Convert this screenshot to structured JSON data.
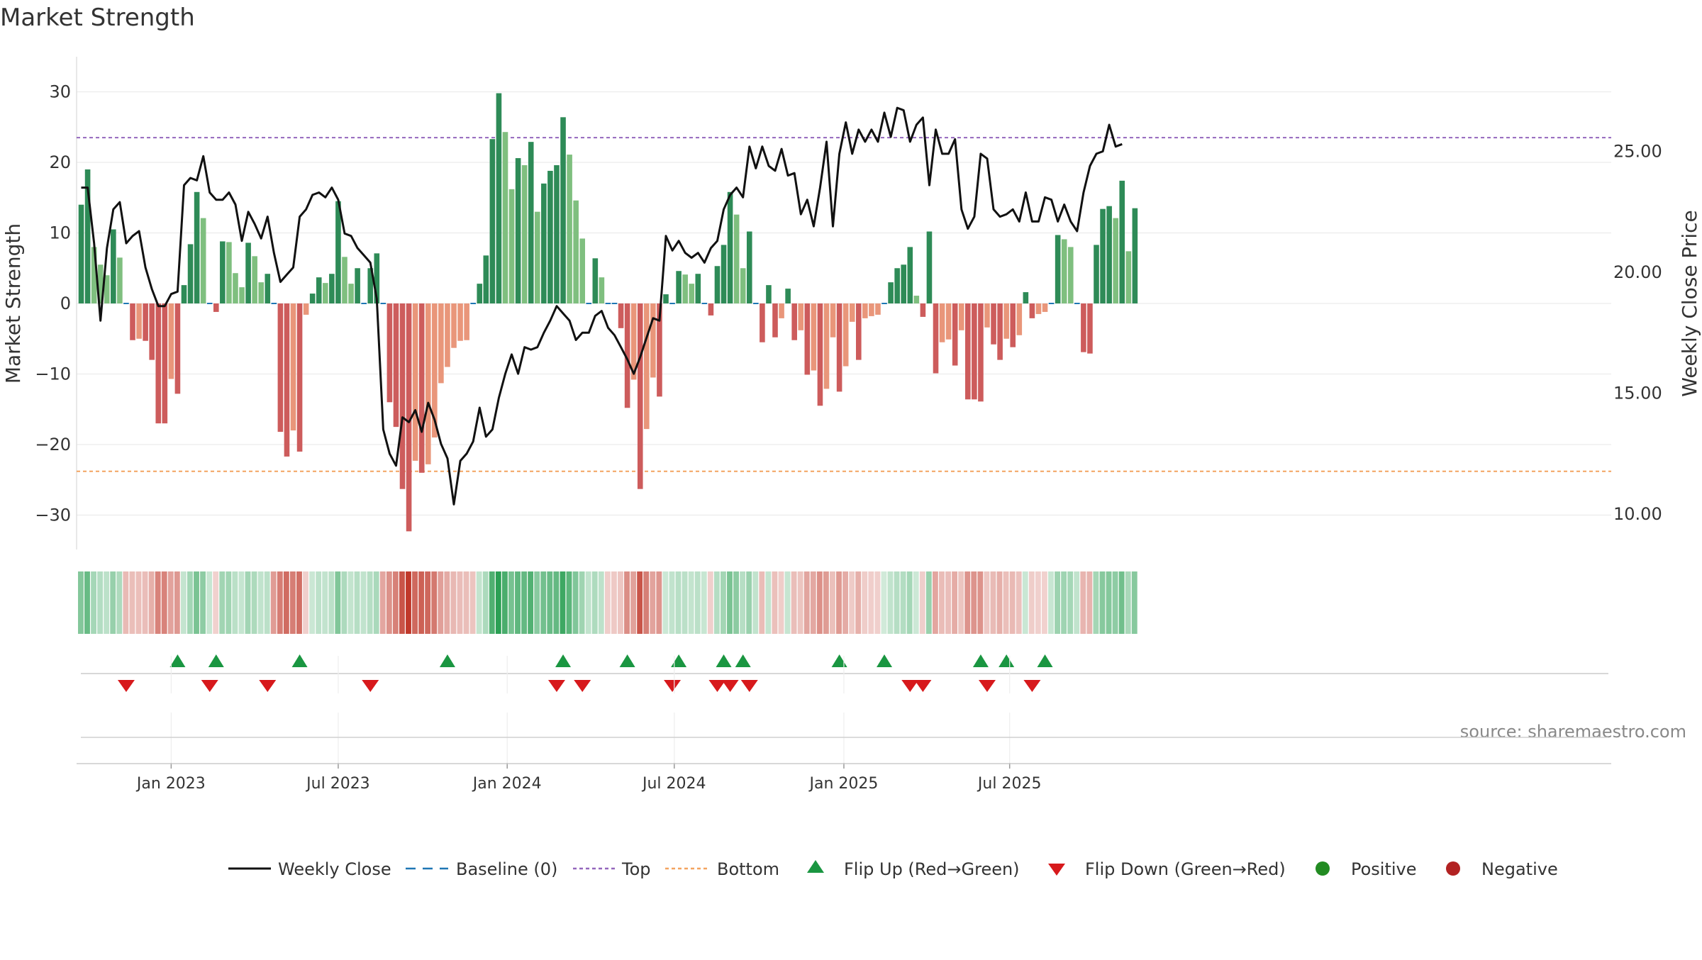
{
  "title": "Market Strength",
  "source": "source: sharemaestro.com",
  "colors": {
    "pos_strong": "#2e8b57",
    "pos_light": "#7fbf7f",
    "neg_strong": "#cd5c5c",
    "neg_light": "#e9967a",
    "line": "#111111",
    "baseline": "#1f77b4",
    "top": "#9467bd",
    "bottom": "#f4a460",
    "flip_up": "#1a9641",
    "flip_down": "#d7191c",
    "positive_dot": "#228b22",
    "negative_dot": "#b22222"
  },
  "chart_data": {
    "type": "bar",
    "title": "Market Strength",
    "ylabel_left": "Market Strength",
    "ylabel_right": "Weekly Close Price",
    "ylim_left": [
      -35,
      35
    ],
    "yticks_left": [
      "30",
      "20",
      "10",
      "0",
      "−10",
      "−20",
      "−30"
    ],
    "ytick_values_left": [
      30,
      20,
      10,
      0,
      -10,
      -20,
      -30
    ],
    "ylim_right": [
      8.1,
      28.1
    ],
    "yticks_right": [
      "25.00",
      "20.00",
      "15.00",
      "10.00"
    ],
    "ytick_values_right": [
      25,
      20,
      15,
      10
    ],
    "top_level": 23.5,
    "bottom_level": -23.8,
    "x_ticks": [
      {
        "label": "Jan 2023",
        "week": 14.5
      },
      {
        "label": "Jul 2023",
        "week": 40.5
      },
      {
        "label": "Jan 2024",
        "week": 66.8
      },
      {
        "label": "Jul 2024",
        "week": 92.8
      },
      {
        "label": "Jan 2025",
        "week": 119.2
      },
      {
        "label": "Jul 2025",
        "week": 145
      }
    ],
    "strength": [
      14,
      19,
      8,
      5.5,
      4,
      10.5,
      6.5,
      -0.3,
      -5.2,
      -5,
      -5.3,
      -8,
      -17,
      -17,
      -10.7,
      -12.8,
      2.6,
      8.4,
      15.8,
      12.1,
      0,
      -1.2,
      8.8,
      8.7,
      4.3,
      2.3,
      8.6,
      6.7,
      3,
      4.2,
      -0.3,
      -18.2,
      -21.7,
      -18,
      -21,
      -1.6,
      1.4,
      3.7,
      2.9,
      4.2,
      14.5,
      6.6,
      2.8,
      5,
      -0.3,
      5,
      7.1,
      -0.3,
      -14,
      -17.5,
      -26.3,
      -32.3,
      -22.3,
      -24,
      -22.8,
      -19,
      -11.3,
      -9,
      -6.3,
      -5.3,
      -5.2,
      -0.3,
      2.8,
      6.8,
      23.3,
      29.8,
      24.3,
      16.2,
      20.6,
      19.6,
      22.9,
      13,
      17,
      18.8,
      19.6,
      26.4,
      21.1,
      14.6,
      9.2,
      -0.3,
      6.4,
      3.7,
      -0.3,
      -0.3,
      -3.5,
      -14.8,
      -10.8,
      -26.3,
      -17.8,
      -10.5,
      -13.2,
      1.3,
      -0.3,
      4.6,
      4.1,
      2.8,
      4.2,
      -0.3,
      -1.7,
      5.3,
      8.3,
      15.8,
      12.6,
      5,
      10.2,
      -0.3,
      -5.5,
      2.6,
      -4.8,
      -2.1,
      2.1,
      -5.2,
      -3.8,
      -10.1,
      -9.5,
      -14.5,
      -12.1,
      -4.8,
      -12.5,
      -8.9,
      -2.6,
      -8,
      -2.1,
      -1.8,
      -1.6,
      0.3,
      3,
      5,
      5.5,
      8,
      1.1,
      -1.9,
      10.2,
      -9.9,
      -5.5,
      -5.1,
      -8.8,
      -3.8,
      -13.6,
      -13.6,
      -13.9,
      -3.4,
      -5.8,
      -8,
      -5,
      -6.2,
      -4.5,
      1.6,
      -2.1,
      -1.5,
      -1.2,
      0,
      9.7,
      9.1,
      8,
      0,
      -6.9,
      -7.1,
      8.3,
      13.4,
      13.8,
      12.1,
      17.4,
      7.4,
      13.5
    ],
    "price": [
      23.5,
      23.5,
      21.2,
      18,
      21,
      22.6,
      22.9,
      21.2,
      21.5,
      21.7,
      20.2,
      19.3,
      18.6,
      18.6,
      19.1,
      19.2,
      23.6,
      23.9,
      23.8,
      24.8,
      23.3,
      23,
      23,
      23.3,
      22.8,
      21.3,
      22.5,
      22,
      21.4,
      22.3,
      20.8,
      19.6,
      19.9,
      20.2,
      22.3,
      22.6,
      23.2,
      23.3,
      23.1,
      23.5,
      23,
      21.6,
      21.5,
      21,
      20.7,
      20.4,
      18.9,
      13.5,
      12.5,
      12,
      14,
      13.8,
      14.3,
      13.4,
      14.6,
      13.9,
      12.9,
      12.3,
      10.4,
      12.2,
      12.5,
      13,
      14.4,
      13.2,
      13.5,
      14.8,
      15.8,
      16.6,
      15.8,
      16.9,
      16.8,
      16.9,
      17.5,
      18,
      18.6,
      18.3,
      18,
      17.2,
      17.5,
      17.5,
      18.2,
      18.4,
      17.7,
      17.4,
      16.9,
      16.4,
      15.8,
      16.5,
      17.3,
      18.1,
      18,
      21.5,
      20.9,
      21.3,
      20.8,
      20.6,
      20.8,
      20.4,
      21,
      21.3,
      22.6,
      23.2,
      23.5,
      23.1,
      25.2,
      24.3,
      25.2,
      24.4,
      24.2,
      25.1,
      24,
      24.1,
      22.4,
      23,
      21.9,
      23.5,
      25.4,
      21.9,
      24.9,
      26.2,
      24.9,
      25.9,
      25.4,
      25.9,
      25.4,
      26.6,
      25.6,
      26.8,
      26.7,
      25.4,
      26.1,
      26.4,
      23.6,
      25.9,
      24.9,
      24.9,
      25.5,
      22.6,
      21.8,
      22.3,
      24.9,
      24.7,
      22.6,
      22.3,
      22.4,
      22.6,
      22.1,
      23.3,
      22.1,
      22.1,
      23.1,
      23,
      22.1,
      22.8,
      22.1,
      21.7,
      23.3,
      24.4,
      24.9,
      25,
      26.1,
      25.2,
      25.3
    ],
    "heat_strength": [
      14,
      19,
      8,
      5.5,
      4,
      10.5,
      6.5,
      -6,
      -5.2,
      -5,
      -5.3,
      -8,
      -17,
      -17,
      -10.7,
      -12.8,
      2.6,
      8.4,
      15.8,
      12.1,
      2,
      -1.2,
      8.8,
      8.7,
      4.3,
      2.3,
      8.6,
      6.7,
      3,
      4.2,
      -12,
      -18.2,
      -21.7,
      -18,
      -21,
      -1.6,
      1.4,
      3.7,
      2.9,
      4.2,
      14.5,
      6.6,
      2.8,
      5,
      3,
      5,
      7.1,
      -10,
      -14,
      -17.5,
      -26.3,
      -32.3,
      -22.3,
      -24,
      -22.8,
      -19,
      -11.3,
      -9,
      -6.3,
      -5.3,
      -5.2,
      -4,
      2.8,
      6.8,
      23.3,
      29.8,
      24.3,
      16.2,
      20.6,
      19.6,
      22.9,
      13,
      17,
      18.8,
      19.6,
      26.4,
      21.1,
      14.6,
      9.2,
      3,
      6.4,
      3.7,
      -2,
      -3,
      -3.5,
      -14.8,
      -10.8,
      -26.3,
      -17.8,
      -10.5,
      -13.2,
      1.3,
      3,
      4.6,
      4.1,
      2.8,
      4.2,
      2,
      -1.7,
      5.3,
      8.3,
      15.8,
      12.6,
      5,
      10.2,
      3,
      -5.5,
      2.6,
      -4.8,
      -2.1,
      2.1,
      -5.2,
      -3.8,
      -10.1,
      -9.5,
      -14.5,
      -12.1,
      -4.8,
      -12.5,
      -8.9,
      -2.6,
      -8,
      -2.1,
      -1.8,
      -1.6,
      0.3,
      3,
      5,
      5.5,
      8,
      1.1,
      -1.9,
      10.2,
      -9.9,
      -5.5,
      -5.1,
      -8.8,
      -3.8,
      -13.6,
      -13.6,
      -13.9,
      -3.4,
      -5.8,
      -8,
      -5,
      -6.2,
      -4.5,
      1.6,
      -2.1,
      -1.5,
      -1.2,
      2,
      9.7,
      9.1,
      8,
      3,
      -6.9,
      -7.1,
      8.3,
      13.4,
      13.8,
      12.1,
      17.4,
      7.4,
      13.5
    ],
    "flip_up_weeks": [
      15,
      21,
      34,
      57,
      75,
      85,
      93,
      100,
      103,
      118,
      125,
      140,
      144,
      150
    ],
    "flip_down_weeks": [
      7,
      20,
      29,
      45,
      74,
      78,
      92,
      99,
      101,
      104,
      129,
      131,
      141,
      148
    ],
    "legend": [
      "Weekly Close",
      "Baseline (0)",
      "Top",
      "Bottom",
      "Flip Up (Red→Green)",
      "Flip Down (Green→Red)",
      "Positive",
      "Negative"
    ],
    "legend_placement": "bottom",
    "grid": true
  }
}
